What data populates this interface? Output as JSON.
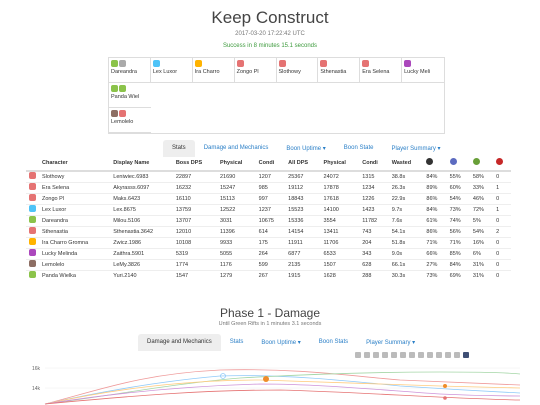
{
  "header": {
    "title": "Keep Construct",
    "timestamp": "2017-03-20 17:22:42 UTC",
    "success": "Success in 8 minutes 15.1 seconds"
  },
  "squad": [
    [
      {
        "name": "Dareandra",
        "colors": [
          "#8bc34a",
          "#aaa"
        ]
      },
      {
        "name": "Lex Luxor",
        "colors": [
          "#4fc3f7"
        ]
      },
      {
        "name": "Ira Charro",
        "colors": [
          "#ffb300"
        ]
      },
      {
        "name": "Zongo Pl",
        "colors": [
          "#e57373"
        ]
      },
      {
        "name": "Slothowy",
        "colors": [
          "#e57373"
        ]
      },
      {
        "name": "Sthenastia",
        "colors": [
          "#e57373"
        ]
      },
      {
        "name": "Era Selena",
        "colors": [
          "#e57373"
        ]
      },
      {
        "name": "Lucky Meli",
        "colors": [
          "#ab47bc"
        ]
      }
    ],
    [
      {
        "name": "Panda Wiel",
        "colors": [
          "#8bc34a",
          "#8bc34a"
        ]
      }
    ],
    [
      {
        "name": "Lemolelo",
        "colors": [
          "#8d6e63",
          "#e57373"
        ]
      }
    ]
  ],
  "tabs": {
    "top": [
      "Stats",
      "Damage and Mechanics",
      "Boon Uptime ▾",
      "Boon State",
      "Player Summary ▾"
    ],
    "phase": [
      "Damage and Mechanics",
      "Stats",
      "Boon Uptime ▾",
      "Boon Stats",
      "Player Summary ▾"
    ]
  },
  "table": {
    "headers": [
      "Character",
      "Display Name",
      "Boss DPS",
      "Physical",
      "Condi",
      "All DPS",
      "Physical",
      "Condi",
      "Wasted"
    ],
    "header_icons": [
      "#333",
      "#5c6bc0",
      "#689f38",
      "#c62828"
    ],
    "rows": [
      {
        "color": "#e57373",
        "cells": [
          "Slothowy",
          "Leniwiec.6983",
          "22897",
          "21690",
          "1207",
          "25367",
          "24072",
          "1315",
          "38.8s",
          "84%",
          "55%",
          "58%",
          "0"
        ]
      },
      {
        "color": "#e57373",
        "cells": [
          "Era Selena",
          "Akyrasss.6097",
          "16232",
          "15247",
          "985",
          "19112",
          "17878",
          "1234",
          "26.3s",
          "89%",
          "60%",
          "33%",
          "1"
        ]
      },
      {
        "color": "#e57373",
        "cells": [
          "Zongo Pl",
          "Maks.6423",
          "16110",
          "15113",
          "997",
          "18843",
          "17618",
          "1226",
          "22.9s",
          "86%",
          "54%",
          "46%",
          "0"
        ]
      },
      {
        "color": "#4fc3f7",
        "cells": [
          "Lex Luxor",
          "Lex.8675",
          "13759",
          "12522",
          "1237",
          "15523",
          "14100",
          "1423",
          "9.7s",
          "84%",
          "73%",
          "72%",
          "1"
        ]
      },
      {
        "color": "#8bc34a",
        "cells": [
          "Dareandra",
          "Milou.5106",
          "13707",
          "3031",
          "10675",
          "15336",
          "3554",
          "11782",
          "7.6s",
          "61%",
          "74%",
          "5%",
          "0"
        ]
      },
      {
        "color": "#e57373",
        "cells": [
          "Sthenastia",
          "Sthenastia.3642",
          "12010",
          "11396",
          "614",
          "14154",
          "13411",
          "743",
          "54.1s",
          "86%",
          "56%",
          "54%",
          "2"
        ]
      },
      {
        "color": "#ffb300",
        "cells": [
          "Ira Charro Gromna",
          "Zwicz.1986",
          "10108",
          "9933",
          "175",
          "11911",
          "11706",
          "204",
          "51.8s",
          "71%",
          "71%",
          "16%",
          "0"
        ]
      },
      {
        "color": "#ab47bc",
        "cells": [
          "Lucky Melinda",
          "Zaithra.5901",
          "5319",
          "5055",
          "264",
          "6877",
          "6533",
          "343",
          "9.0s",
          "66%",
          "85%",
          "6%",
          "0"
        ]
      },
      {
        "color": "#8d6e63",
        "cells": [
          "Lemolelo",
          "LeMy.3826",
          "1774",
          "1176",
          "599",
          "2135",
          "1507",
          "628",
          "66.1s",
          "27%",
          "84%",
          "31%",
          "0"
        ]
      },
      {
        "color": "#8bc34a",
        "cells": [
          "Panda Wielka",
          "Yuri.2140",
          "1547",
          "1279",
          "267",
          "1915",
          "1628",
          "288",
          "30.3s",
          "73%",
          "69%",
          "31%",
          "0"
        ]
      }
    ]
  },
  "phase": {
    "title": "Phase 1 - Damage",
    "subtitle": "Until Green Rifts in 1 minutes 3.1 seconds"
  },
  "chart_data": {
    "type": "line",
    "ytick_labels": [
      "16k",
      "14k"
    ],
    "series": [
      {
        "color": "#ef9a9a"
      },
      {
        "color": "#90caf9"
      },
      {
        "color": "#a5d6a7"
      },
      {
        "color": "#ffcc80"
      },
      {
        "color": "#ce93d8"
      },
      {
        "color": "#e57373"
      }
    ]
  }
}
